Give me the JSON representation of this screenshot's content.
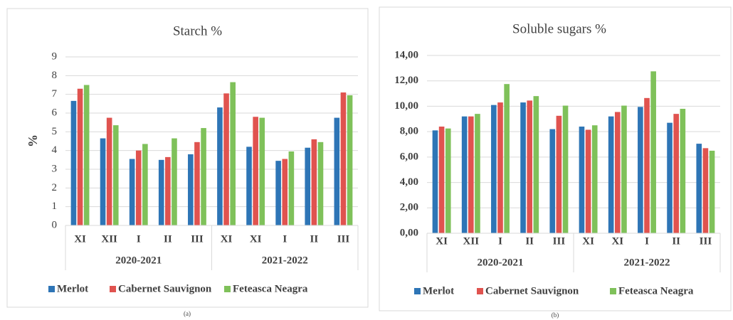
{
  "chart_data": [
    {
      "type": "bar",
      "title": "Starch %",
      "y_label": "%",
      "caption": "(a)",
      "categories": [
        "XI",
        "XII",
        "I",
        "II",
        "III",
        "XI",
        "XI",
        "I",
        "II",
        "III"
      ],
      "groups": [
        "2020-2021",
        "2021-2022"
      ],
      "series": [
        {
          "name": "Merlot",
          "color": "#2e75b6",
          "values": [
            6.65,
            4.65,
            3.55,
            3.5,
            3.8,
            6.3,
            4.2,
            3.45,
            4.15,
            5.75
          ]
        },
        {
          "name": "Cabernet Sauvignon",
          "color": "#e0534f",
          "values": [
            7.3,
            5.75,
            4.0,
            3.65,
            4.45,
            7.05,
            5.8,
            3.55,
            4.6,
            7.1
          ]
        },
        {
          "name": "Feteasca Neagra",
          "color": "#7fc15a",
          "values": [
            7.5,
            5.35,
            4.35,
            4.65,
            5.2,
            7.65,
            5.75,
            3.95,
            4.45,
            6.95
          ]
        }
      ],
      "ylim": [
        0,
        9
      ],
      "yticks": [
        0,
        1,
        2,
        3,
        4,
        5,
        6,
        7,
        8,
        9
      ],
      "grid": true,
      "legend": "bottom"
    },
    {
      "type": "bar",
      "title": "Soluble sugars %",
      "caption": "(b)",
      "categories": [
        "XI",
        "XII",
        "I",
        "II",
        "III",
        "XI",
        "XI",
        "I",
        "II",
        "III"
      ],
      "groups": [
        "2020-2021",
        "2021-2022"
      ],
      "series": [
        {
          "name": "Merlot",
          "color": "#2e75b6",
          "values": [
            8.1,
            9.2,
            10.1,
            10.3,
            8.2,
            8.4,
            9.2,
            9.95,
            8.7,
            7.05
          ]
        },
        {
          "name": "Cabernet Sauvignon",
          "color": "#e0534f",
          "values": [
            8.4,
            9.2,
            10.3,
            10.45,
            9.25,
            8.15,
            9.55,
            10.65,
            9.4,
            6.7
          ]
        },
        {
          "name": "Feteasca Neagra",
          "color": "#7fc15a",
          "values": [
            8.25,
            9.4,
            11.75,
            10.8,
            10.05,
            8.5,
            10.05,
            12.75,
            9.8,
            6.5
          ]
        }
      ],
      "ylim": [
        0,
        14
      ],
      "yticks": [
        {
          "value": 0,
          "label": "0,00"
        },
        {
          "value": 2,
          "label": "2,00"
        },
        {
          "value": 4,
          "label": "4,00"
        },
        {
          "value": 6,
          "label": "6,00"
        },
        {
          "value": 8,
          "label": "8,00"
        },
        {
          "value": 10,
          "label": "10,00"
        },
        {
          "value": 12,
          "label": "12,00"
        },
        {
          "value": 14,
          "label": "14,00"
        }
      ],
      "grid": true,
      "legend": "bottom"
    }
  ]
}
